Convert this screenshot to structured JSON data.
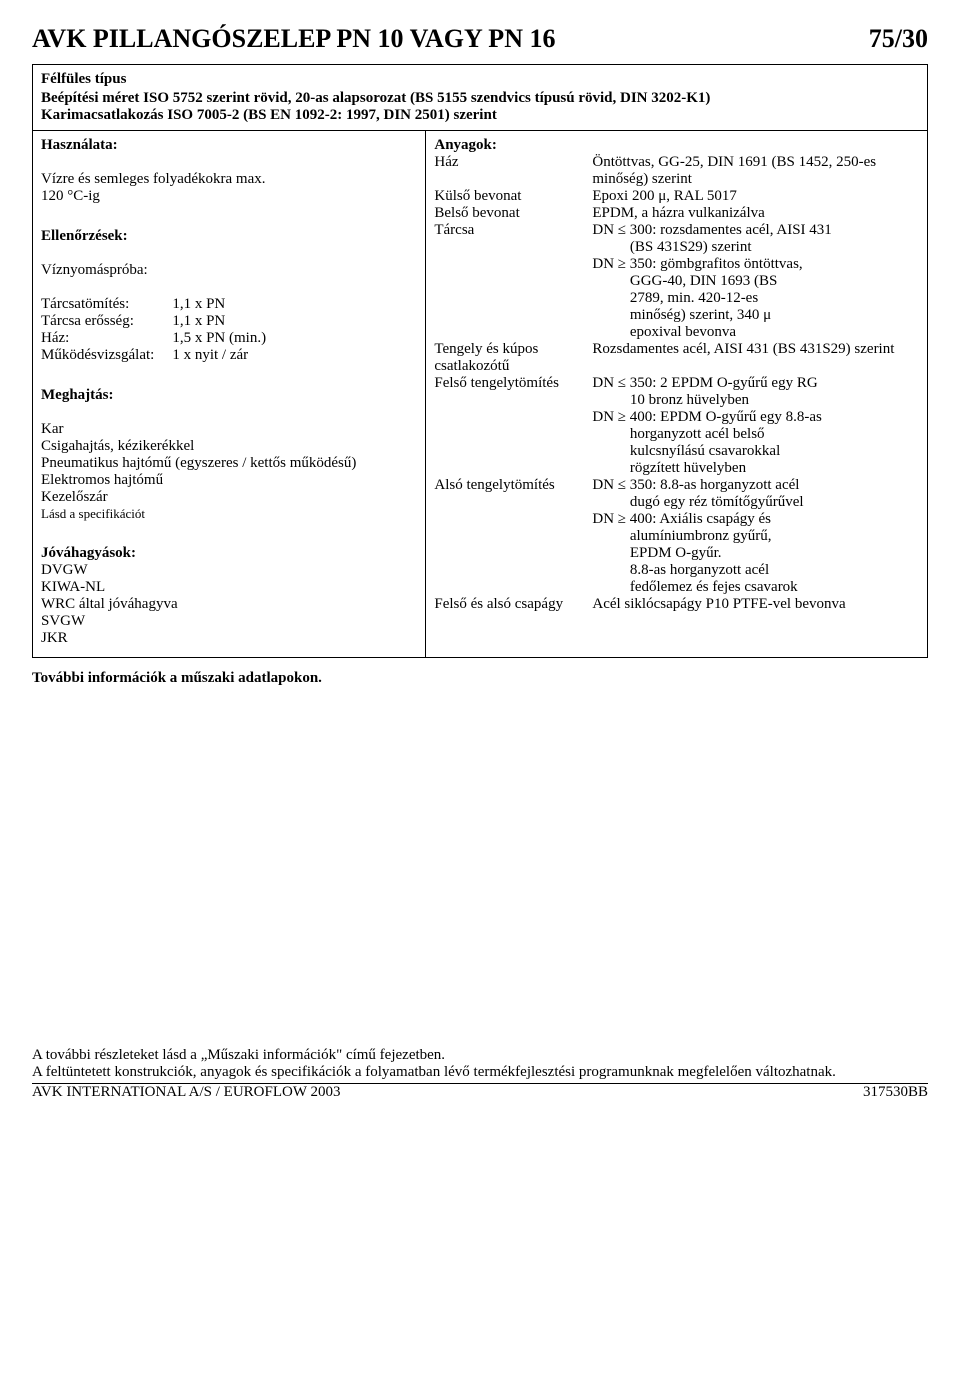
{
  "header": {
    "title": "AVK PILLANGÓSZELEP PN 10 VAGY PN 16",
    "code": "75/30"
  },
  "intro": {
    "box_title": "Félfüles típus",
    "text": "Beépítési méret ISO 5752 szerint rövid, 20-as alapsorozat (BS 5155 szendvics típusú rövid, DIN 3202-K1)\nKarimacsatlakozás ISO 7005-2 (BS EN 1092-2: 1997, DIN 2501) szerint"
  },
  "left": {
    "usage_title": "Használata:",
    "usage_line1": "Vízre és semleges folyadékokra max.",
    "usage_line2": "120 °C-ig",
    "checks_title": "Ellenőrzések:",
    "pressure_test": "Víznyomáspróba:",
    "tests": {
      "t1_label": "Tárcsatömítés:",
      "t1_val": "1,1 x PN",
      "t2_label": "Tárcsa erősség:",
      "t2_val": "1,1 x PN",
      "t3_label": "Ház:",
      "t3_val": "1,5 x PN (min.)",
      "t4_label": "Működésvizsgálat:",
      "t4_val": "1 x nyit / zár"
    },
    "drive_title": "Meghajtás:",
    "drive_lines": {
      "d1": "Kar",
      "d2": "Csigahajtás, kézikerékkel",
      "d3": "Pneumatikus hajtómű (egyszeres / kettős működésű)",
      "d4": "Elektromos hajtómű",
      "d5": "Kezelőszár"
    },
    "drive_note": "Lásd a specifikációt",
    "approvals_title": "Jóváhagyások:",
    "approvals": {
      "a1": "DVGW",
      "a2": "KIWA-NL",
      "a3": "WRC által jóváhagyva",
      "a4": "SVGW",
      "a5": "JKR"
    }
  },
  "right": {
    "materials_title": "Anyagok:",
    "rows": {
      "haz_label": "Ház",
      "haz_val": "Öntöttvas, GG-25, DIN 1691 (BS 1452, 250-es minőség) szerint",
      "kulso_label": "Külső bevonat",
      "kulso_val": "Epoxi 200 μ, RAL 5017",
      "belso_label": "Belső bevonat",
      "belso_val": "EPDM, a házra vulkanizálva",
      "tarcsa_label": "Tárcsa",
      "tarcsa_val": "DN ≤ 300: rozsdamentes acél, AISI 431\n          (BS 431S29) szerint\nDN ≥ 350: gömbgrafitos öntöttvas,\n          GGG-40, DIN 1693 (BS\n          2789, min. 420-12-es\n          minőség) szerint, 340 μ\n          epoxival bevonva",
      "tengely_label": "Tengely és kúpos csatlakozótű",
      "tengely_val": "Rozsdamentes acél, AISI 431 (BS 431S29) szerint",
      "felsot_label": "Felső tengelytömítés",
      "felsot_val": "DN ≤ 350: 2 EPDM O-gyűrű egy RG\n          10 bronz hüvelyben\nDN ≥ 400: EPDM O-gyűrű egy 8.8-as\n          horganyzott acél belső\n          kulcsnyílású csavarokkal\n          rögzített hüvelyben",
      "alsot_label": "Alsó tengelytömítés",
      "alsot_val": "DN ≤ 350: 8.8-as horganyzott acél\n          dugó egy réz tömítőgyűrűvel\nDN ≥ 400: Axiális csapágy és\n          alumíniumbronz gyűrű,\n          EPDM O-gyűr.\n          8.8-as horganyzott acél\n          fedőlemez és fejes csavarok",
      "csapagy_label": "Felső és alsó csapágy",
      "csapagy_val": "Acél siklócsapágy P10 PTFE-vel bevonva"
    }
  },
  "more_info": "További információk a műszaki adatlapokon.",
  "bottom": {
    "line1": "A további részleteket lásd a „Műszaki információk\" című fejezetben.",
    "line2": "A feltüntetett konstrukciók, anyagok és specifikációk a folyamatban lévő termékfejlesztési programunknak megfelelően változhatnak."
  },
  "footer": {
    "left": "AVK INTERNATIONAL A/S  /  EUROFLOW 2003",
    "right": "317530BB"
  }
}
